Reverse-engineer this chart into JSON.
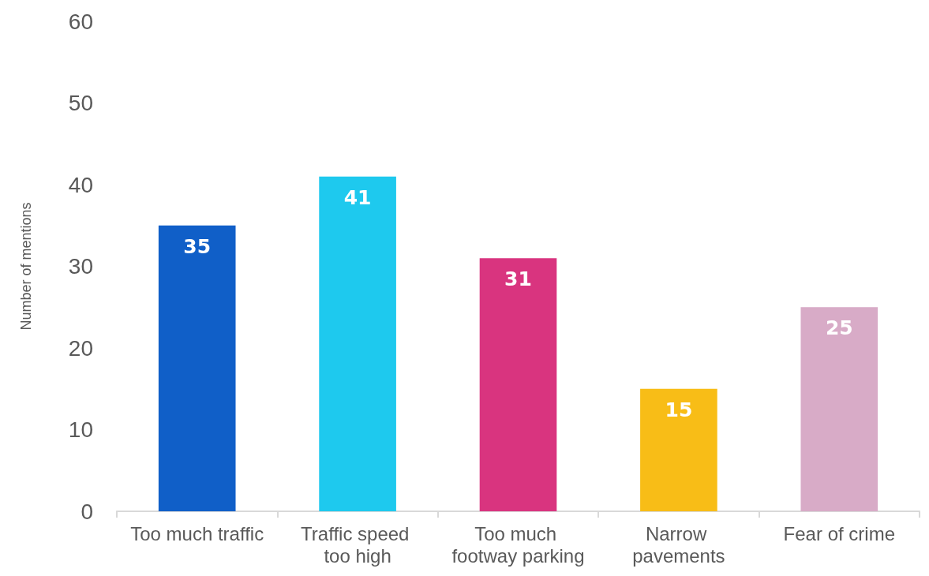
{
  "chart_data": {
    "type": "bar",
    "ylabel": "Number of mentions",
    "categories": [
      "Too much traffic",
      "Traffic speed too high",
      "Too much footway parking",
      "Narrow pavements",
      "Fear of crime"
    ],
    "values": [
      35,
      41,
      31,
      15,
      25
    ],
    "colors": [
      "#105fc8",
      "#1ec9ee",
      "#d9347f",
      "#f8bd17",
      "#d8abc7"
    ],
    "ylim": [
      0,
      60
    ],
    "yticks": [
      0,
      10,
      20,
      30,
      40,
      50,
      60
    ],
    "data_labels": true,
    "grid": false
  }
}
